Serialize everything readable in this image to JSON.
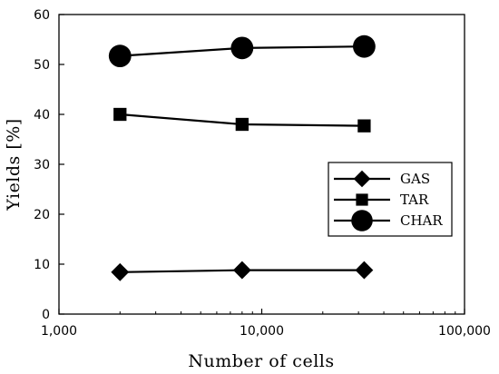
{
  "chart_data": {
    "type": "line",
    "xlabel": "Number of cells",
    "ylabel": "Yields [%]",
    "x_scale": "log",
    "xlim": [
      1000,
      100000
    ],
    "ylim": [
      0,
      60
    ],
    "x_ticks": [
      1000,
      10000,
      100000
    ],
    "x_tick_labels": [
      "1,000",
      "10,000",
      "100,000"
    ],
    "y_ticks": [
      0,
      10,
      20,
      30,
      40,
      50,
      60
    ],
    "y_tick_labels": [
      "0",
      "10",
      "20",
      "30",
      "40",
      "50",
      "60"
    ],
    "grid": false,
    "legend_position": "right",
    "x": [
      2000,
      8000,
      32000
    ],
    "series": [
      {
        "name": "GAS",
        "marker": "diamond",
        "values": [
          8.4,
          8.8,
          8.8
        ]
      },
      {
        "name": "TAR",
        "marker": "square",
        "values": [
          40.0,
          38.0,
          37.7
        ]
      },
      {
        "name": "CHAR",
        "marker": "circle",
        "values": [
          51.7,
          53.3,
          53.6
        ]
      }
    ],
    "colors": {
      "line": "#000000",
      "marker": "#000000"
    }
  }
}
